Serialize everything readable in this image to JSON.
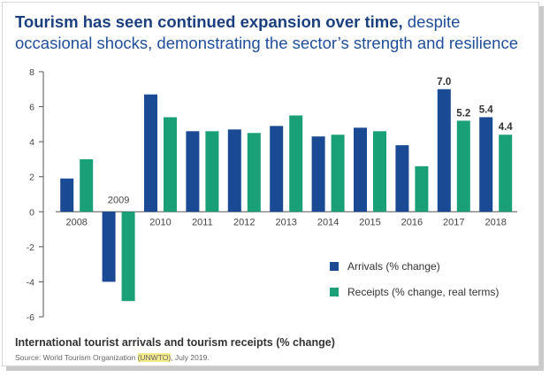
{
  "header": {
    "title_bold": "Tourism has seen continued expansion over time,",
    "title_rest": " despite occasional shocks, demonstrating the sector’s strength and resilience"
  },
  "footer": {
    "caption": "International tourist arrivals and tourism receipts (% change)",
    "source_prefix": "Source: World Tourism Organization ",
    "source_highlight": "(UNWTO)",
    "source_suffix": ", July 2019."
  },
  "colors": {
    "arrivals": "#1a4a94",
    "receipts": "#1aa077",
    "highlight": "#f4eb8c"
  },
  "chart_data": {
    "type": "bar",
    "categories": [
      "2008",
      "2009",
      "2010",
      "2011",
      "2012",
      "2013",
      "2014",
      "2015",
      "2016",
      "2017",
      "2018"
    ],
    "series": [
      {
        "name": "Arrivals (% change)",
        "values": [
          1.9,
          -4.0,
          6.7,
          4.6,
          4.7,
          4.9,
          4.3,
          4.8,
          3.8,
          7.0,
          5.4
        ]
      },
      {
        "name": "Receipts (% change, real terms)",
        "values": [
          3.0,
          -5.1,
          5.4,
          4.6,
          4.5,
          5.5,
          4.4,
          4.6,
          2.6,
          5.2,
          4.4
        ]
      }
    ],
    "data_labels": [
      {
        "category": "2017",
        "series": 0,
        "text": "7.0"
      },
      {
        "category": "2017",
        "series": 1,
        "text": "5.2"
      },
      {
        "category": "2018",
        "series": 0,
        "text": "5.4"
      },
      {
        "category": "2018",
        "series": 1,
        "text": "4.4"
      }
    ],
    "ylim": [
      -6,
      8
    ],
    "yticks": [
      -6,
      -4,
      -2,
      0,
      2,
      4,
      6,
      8
    ],
    "title": "",
    "xlabel": "",
    "ylabel": "",
    "legend_position": "bottom-right",
    "grid": false
  }
}
